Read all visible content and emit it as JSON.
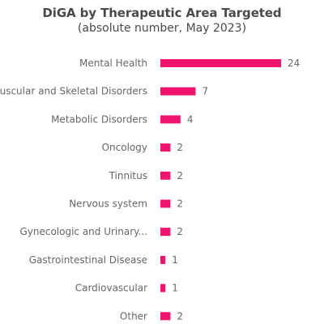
{
  "chart_data": {
    "type": "bar",
    "orientation": "horizontal",
    "title": "DiGA by Therapeutic Area Targeted",
    "subtitle": "(absolute number, May 2023)",
    "categories": [
      "Mental Health",
      "Muscular and Skeletal Disorders",
      "Metabolic Disorders",
      "Oncology",
      "Tinnitus",
      "Nervous system",
      "Gynecologic and Urinary...",
      "Gastrointestinal Disease",
      "Cardiovascular",
      "Other"
    ],
    "values": [
      24,
      7,
      4,
      2,
      2,
      2,
      2,
      1,
      1,
      2
    ],
    "data_labels": [
      "24",
      "7",
      "4",
      "2",
      "2",
      "2",
      "2",
      "1",
      "1",
      "2"
    ],
    "bar_color": "#f0146e",
    "xlim": [
      0,
      24
    ],
    "grid": false,
    "legend": false
  }
}
